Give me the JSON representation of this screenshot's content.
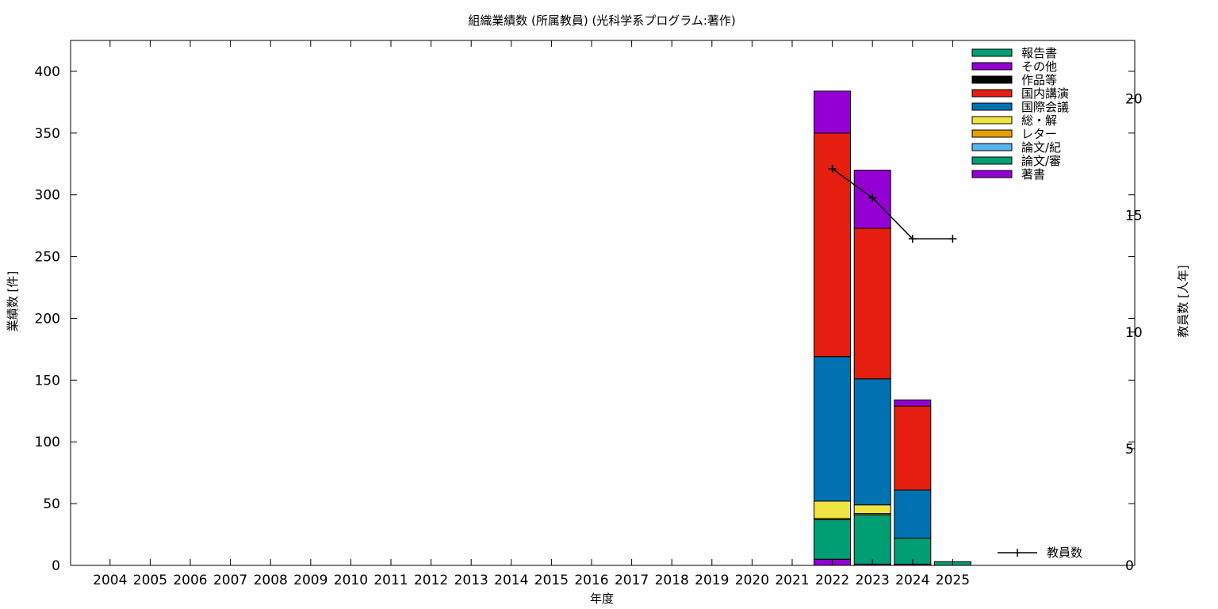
{
  "chart_data": {
    "type": "bar",
    "title": "組織業績数 (所属教員) (光科学系プログラム:著作)",
    "xlabel": "年度",
    "ylabel": "業績数 [件]",
    "y2label": "教員数 [人年]",
    "categories": [
      "2004",
      "2005",
      "2006",
      "2007",
      "2008",
      "2009",
      "2010",
      "2011",
      "2012",
      "2013",
      "2014",
      "2015",
      "2016",
      "2017",
      "2018",
      "2019",
      "2020",
      "2021",
      "2022",
      "2023",
      "2024",
      "2025"
    ],
    "ylim": [
      0,
      425
    ],
    "y2lim": [
      0,
      22.5
    ],
    "yticks": [
      0,
      50,
      100,
      150,
      200,
      250,
      300,
      350,
      400
    ],
    "y2ticks": [
      0,
      5,
      10,
      15,
      20
    ],
    "stacked": true,
    "legend_position": "top-right",
    "series": [
      {
        "name": "著書",
        "color": "#9400d3",
        "values": [
          0,
          0,
          0,
          0,
          0,
          0,
          0,
          0,
          0,
          0,
          0,
          0,
          0,
          0,
          0,
          0,
          0,
          0,
          5,
          1,
          1,
          0
        ]
      },
      {
        "name": "論文/審",
        "color": "#009e73",
        "values": [
          0,
          0,
          0,
          0,
          0,
          0,
          0,
          0,
          0,
          0,
          0,
          0,
          0,
          0,
          0,
          0,
          0,
          0,
          32,
          40,
          21,
          3
        ]
      },
      {
        "name": "論文/紀",
        "color": "#56b4e9",
        "values": [
          0,
          0,
          0,
          0,
          0,
          0,
          0,
          0,
          0,
          0,
          0,
          0,
          0,
          0,
          0,
          0,
          0,
          0,
          0,
          0,
          0,
          0
        ]
      },
      {
        "name": "レター",
        "color": "#e69f00",
        "values": [
          0,
          0,
          0,
          0,
          0,
          0,
          0,
          0,
          0,
          0,
          0,
          0,
          0,
          0,
          0,
          0,
          0,
          0,
          1,
          1,
          0,
          0
        ]
      },
      {
        "name": "総・解",
        "color": "#f0e442",
        "values": [
          0,
          0,
          0,
          0,
          0,
          0,
          0,
          0,
          0,
          0,
          0,
          0,
          0,
          0,
          0,
          0,
          0,
          0,
          14,
          7,
          0,
          0
        ]
      },
      {
        "name": "国際会議",
        "color": "#0072b2",
        "values": [
          0,
          0,
          0,
          0,
          0,
          0,
          0,
          0,
          0,
          0,
          0,
          0,
          0,
          0,
          0,
          0,
          0,
          0,
          117,
          102,
          39,
          0
        ]
      },
      {
        "name": "国内講演",
        "color": "#e51e10",
        "values": [
          0,
          0,
          0,
          0,
          0,
          0,
          0,
          0,
          0,
          0,
          0,
          0,
          0,
          0,
          0,
          0,
          0,
          0,
          181,
          122,
          68,
          0
        ]
      },
      {
        "name": "作品等",
        "color": "#000000",
        "values": [
          0,
          0,
          0,
          0,
          0,
          0,
          0,
          0,
          0,
          0,
          0,
          0,
          0,
          0,
          0,
          0,
          0,
          0,
          0,
          0,
          0,
          0
        ]
      },
      {
        "name": "その他",
        "color": "#9400d3",
        "values": [
          0,
          0,
          0,
          0,
          0,
          0,
          0,
          0,
          0,
          0,
          0,
          0,
          0,
          0,
          0,
          0,
          0,
          0,
          34,
          47,
          5,
          0
        ]
      },
      {
        "name": "報告書",
        "color": "#009e73",
        "values": [
          0,
          0,
          0,
          0,
          0,
          0,
          0,
          0,
          0,
          0,
          0,
          0,
          0,
          0,
          0,
          0,
          0,
          0,
          0,
          0,
          0,
          0
        ]
      }
    ],
    "line_series": {
      "name": "教員数",
      "color": "#000000",
      "axis": "y2",
      "x": [
        "2022",
        "2023",
        "2024",
        "2025"
      ],
      "values": [
        17.0,
        15.75,
        14.0,
        14.0
      ]
    }
  }
}
